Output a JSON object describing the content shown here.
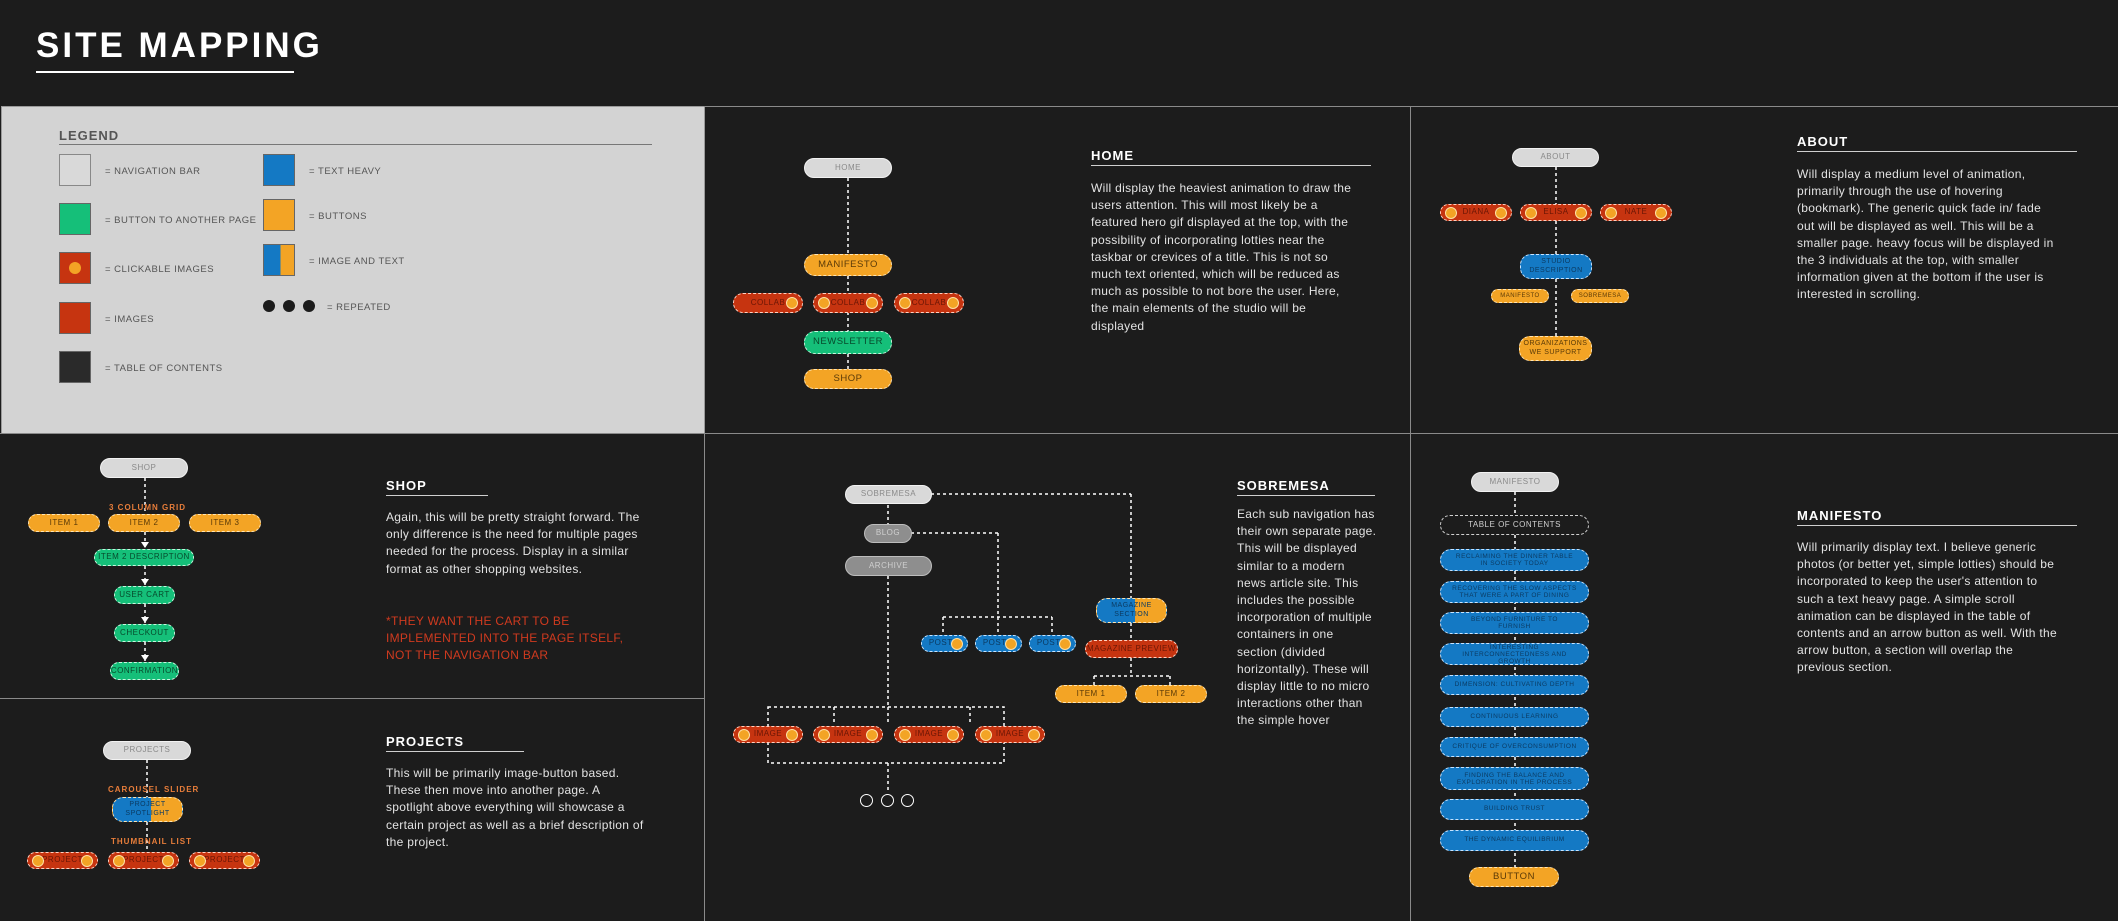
{
  "page_title": "SITE MAPPING",
  "legend": {
    "title": "LEGEND",
    "items": [
      {
        "label": "= NAVIGATION BAR",
        "color": "#d9d9d9"
      },
      {
        "label": "= BUTTON TO ANOTHER PAGE",
        "color": "#15bf79"
      },
      {
        "label": "= CLICKABLE IMAGES",
        "color": "#c63410"
      },
      {
        "label": "= IMAGES",
        "color": "#c63410"
      },
      {
        "label": "= TABLE OF CONTENTS",
        "color": "#2a2a2a"
      },
      {
        "label": "= TEXT HEAVY",
        "color": "#1479c4"
      },
      {
        "label": "= BUTTONS",
        "color": "#f3a425"
      },
      {
        "label": "= IMAGE AND TEXT",
        "color": "#1479c4"
      },
      {
        "label": "= REPEATED",
        "color": "#1c1c1c"
      }
    ]
  },
  "home": {
    "title": "HOME",
    "description": "Will display the heaviest animation to draw the users attention. This will most likely be a featured hero gif displayed at the top, with the possibility of incorporating lotties near the taskbar or crevices of a title. This is not so much text oriented, which will be reduced as much as possible to not bore the user. Here, the main elements of the studio will be displayed",
    "nodes": {
      "home": "HOME",
      "manifesto": "MANIFESTO",
      "collab": "COLLAB",
      "newsletter": "NEWSLETTER",
      "shop": "SHOP"
    }
  },
  "about": {
    "title": "ABOUT",
    "description": "Will display a medium level of animation, primarily through the use of hovering (bookmark). The generic quick fade in/ fade out will be displayed as well. This will be a smaller page. heavy focus will be displayed in the 3 individuals at the top, with smaller information given at the bottom if the user is interested in scrolling.",
    "nodes": {
      "about": "ABOUT",
      "p1": "DIANA",
      "p2": "ELISA",
      "p3": "NATE",
      "studio": "STUDIO DESCRIPTION",
      "manifesto": "MANIFESTO",
      "sobremesa": "SOBREMESA",
      "orgs": "ORGANIZATIONS WE SUPPORT"
    }
  },
  "shop": {
    "title": "SHOP",
    "description": "Again, this will be pretty straight forward. The only difference is the need for multiple pages needed for the process. Display in a similar format as other shopping websites.",
    "note": "*THEY WANT THE CART TO BE IMPLEMENTED INTO THE PAGE ITSELF, NOT THE NAVIGATION BAR",
    "grid_label": "3 COLUMN GRID",
    "nodes": {
      "shop": "SHOP",
      "item1": "ITEM 1",
      "item2": "ITEM 2",
      "item3": "ITEM 3",
      "desc": "ITEM 2 DESCRIPTION",
      "cart": "USER CART",
      "checkout": "CHECKOUT",
      "confirm": "CONFIRMATION"
    }
  },
  "projects": {
    "title": "PROJECTS",
    "description": "This will be primarily image-button based. These then move into another page. A spotlight above everything will showcase a certain project as well as a brief description of the project.",
    "carousel_label": "CAROUSEL SLIDER",
    "thumb_label": "THUMBNAIL LIST",
    "nodes": {
      "projects": "PROJECTS",
      "spotlight": "PROJECT SPOTLIGHT",
      "project": "PROJECT"
    }
  },
  "sobremesa": {
    "title": "SOBREMESA",
    "description": "Each sub navigation has their own separate page. This will be displayed similar to a modern news article site. This includes the possible incorporation of multiple containers in one section (divided horizontally). These will display little to no micro interactions other than the simple hover",
    "nodes": {
      "sobremesa": "SOBREMESA",
      "blog": "BLOG",
      "archive": "ARCHIVE",
      "post": "POST 1",
      "image": "IMAGE",
      "mag_section": "MAGAZINE SECTION",
      "mag_preview": "MAGAZINE PREVIEW",
      "item1": "ITEM 1",
      "item2": "ITEM 2"
    }
  },
  "manifesto": {
    "title": "MANIFESTO",
    "description": "Will primarily display text. I believe generic photos (or better yet, simple lotties) should be incorporated to keep the user's attention to such a text heavy page. A simple scroll animation can be displayed in the table of contents and an arrow button as well. With the arrow button, a section will overlap the previous section.",
    "nodes": {
      "manifesto": "MANIFESTO",
      "toc": "TABLE OF CONTENTS",
      "items": [
        "RECLAIMING THE DINNER TABLE IN SOCIETY TODAY",
        "RECOVERING THE SLOW ASPECTS THAT WERE A PART OF DINING",
        "BEYOND FURNITURE TO FURNISH",
        "INTERESTING INTERCONNECTEDNESS AND GROWTH",
        "DIMENSION: CULTIVATING DEPTH",
        "CONTINUOUS LEARNING",
        "CRITIQUE OF OVERCONSUMPTION",
        "FINDING THE BALANCE AND EXPLORATION IN THE PROCESS",
        "BUILDING TRUST",
        "THE DYNAMIC EQUILIBRIUM"
      ],
      "button": "BUTTON"
    }
  }
}
